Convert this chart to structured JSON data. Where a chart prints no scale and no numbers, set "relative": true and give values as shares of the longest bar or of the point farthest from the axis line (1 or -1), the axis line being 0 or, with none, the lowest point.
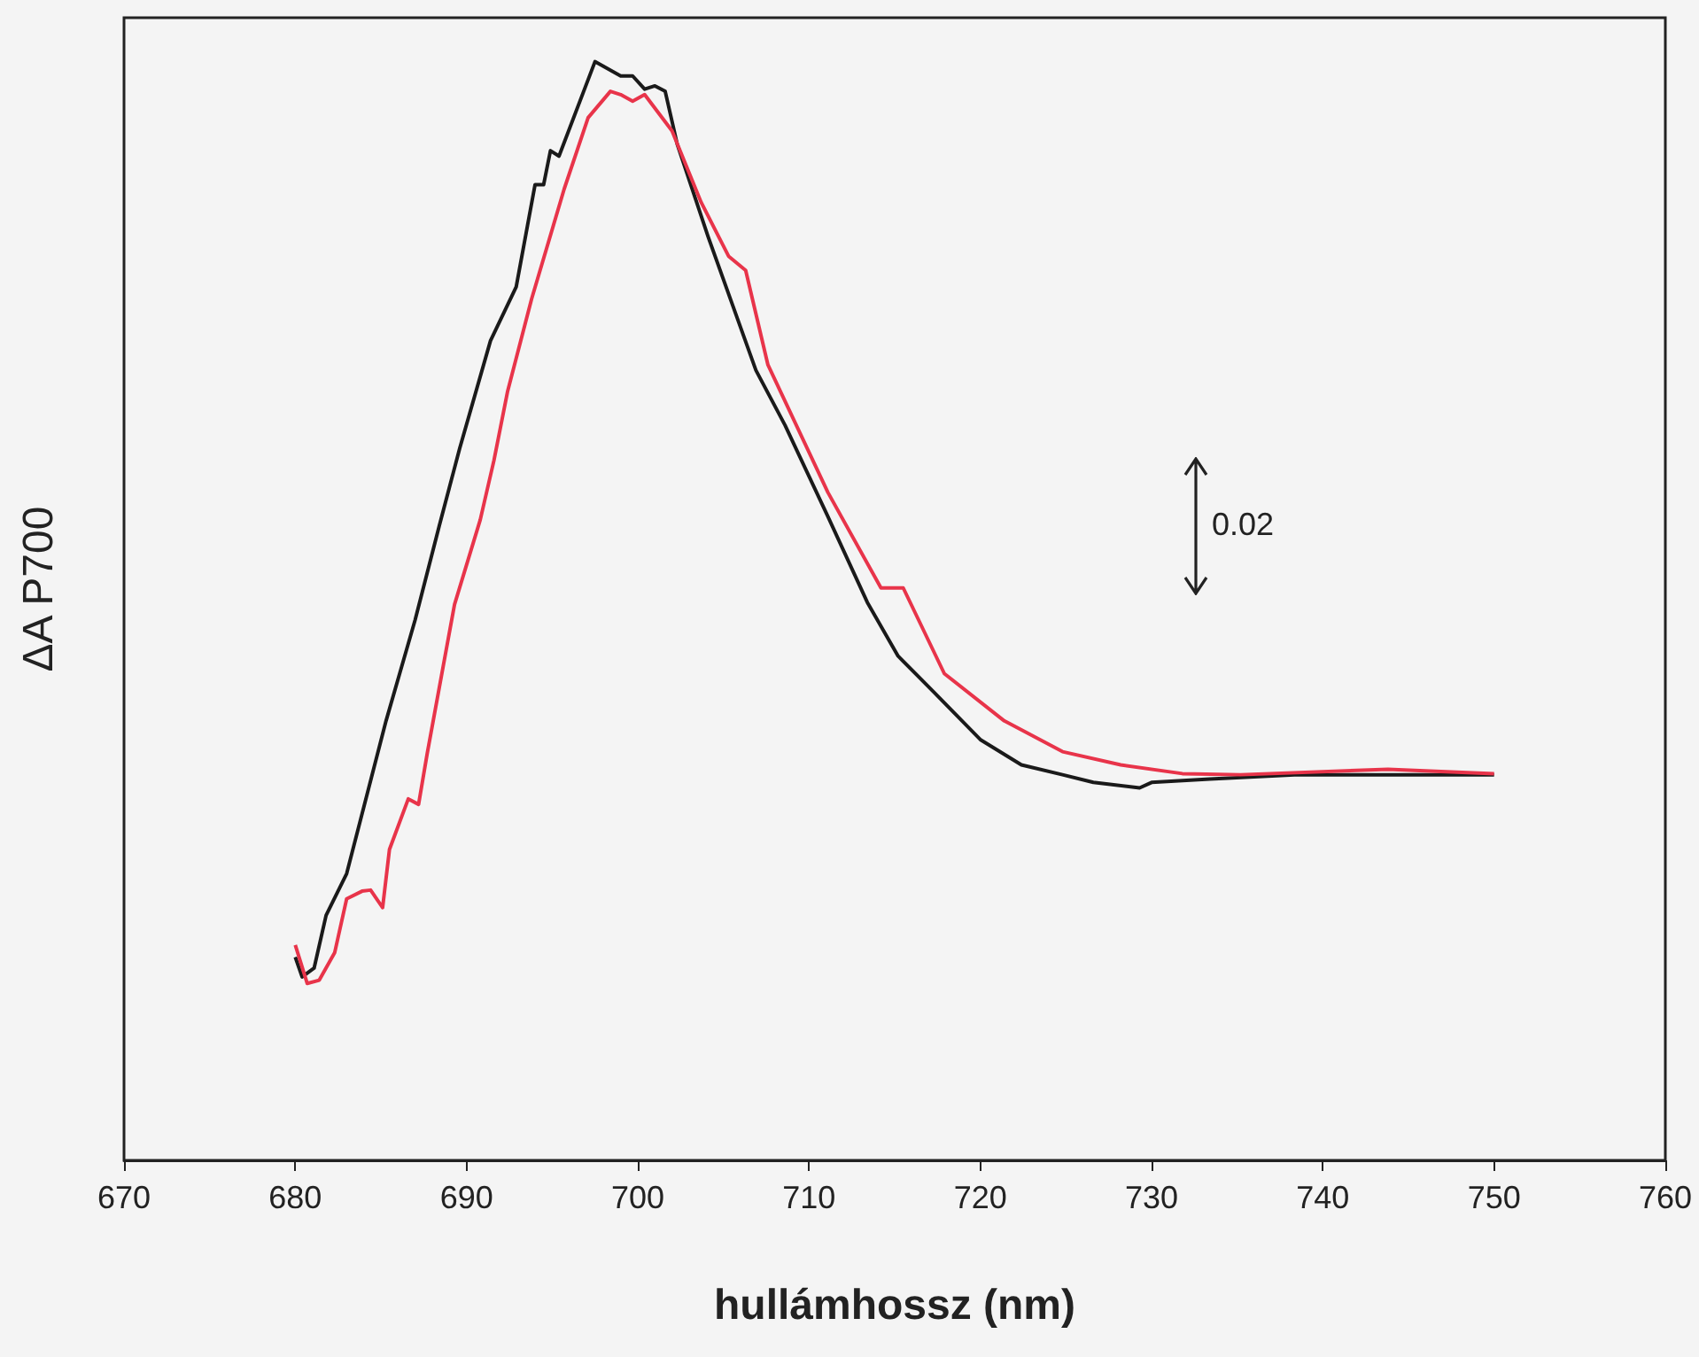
{
  "chart_data": {
    "type": "line",
    "relative": true,
    "xlabel": "hullámhossz (nm)",
    "ylabel": "ΔA P700",
    "xlim": [
      670,
      760
    ],
    "xticks": [
      670,
      680,
      690,
      700,
      710,
      720,
      730,
      740,
      750,
      760
    ],
    "grid": false,
    "marker": "none",
    "line_style": "solid",
    "annotations": [
      "0.02"
    ],
    "series": [
      {
        "color": "#1a1a1a",
        "x": [
          680,
          680.4,
          681.1,
          681.8,
          683,
          685.3,
          687,
          688.4,
          689.6,
          691.4,
          692.9,
          694,
          694.5,
          694.9,
          695.4,
          697.5,
          699,
          699.7,
          700.4,
          701,
          701.6,
          702.3,
          704.1,
          706.9,
          708.6,
          711.1,
          713.4,
          715.2,
          717.3,
          720,
          722.4,
          724.8,
          726.6,
          729.3,
          730,
          733.4,
          738.6,
          743.8,
          750
        ],
        "values": [
          0.185,
          0.167,
          0.175,
          0.223,
          0.261,
          0.4,
          0.492,
          0.577,
          0.648,
          0.746,
          0.795,
          0.888,
          0.888,
          0.919,
          0.914,
          1.0,
          0.987,
          0.987,
          0.975,
          0.978,
          0.973,
          0.925,
          0.841,
          0.719,
          0.669,
          0.586,
          0.508,
          0.459,
          0.426,
          0.383,
          0.36,
          0.351,
          0.344,
          0.339,
          0.344,
          0.347,
          0.351,
          0.351,
          0.351
        ]
      },
      {
        "color": "#e8344a",
        "x": [
          680,
          680.7,
          681.4,
          682.3,
          683,
          683.9,
          684.4,
          685.1,
          685.5,
          686.6,
          687.2,
          687.7,
          689.3,
          690.8,
          691.6,
          692.4,
          693.8,
          695.7,
          697.1,
          698.4,
          699,
          699.7,
          700.4,
          702,
          703.7,
          705.3,
          706.3,
          707.6,
          711.1,
          714.2,
          715.5,
          717.9,
          721.4,
          724.8,
          728.2,
          731.8,
          735.2,
          743.8,
          750
        ],
        "values": [
          0.196,
          0.161,
          0.164,
          0.189,
          0.238,
          0.245,
          0.246,
          0.23,
          0.283,
          0.329,
          0.324,
          0.37,
          0.506,
          0.583,
          0.637,
          0.7,
          0.784,
          0.884,
          0.949,
          0.973,
          0.97,
          0.964,
          0.97,
          0.937,
          0.872,
          0.823,
          0.81,
          0.724,
          0.608,
          0.521,
          0.521,
          0.443,
          0.4,
          0.372,
          0.36,
          0.352,
          0.351,
          0.356,
          0.352
        ]
      }
    ]
  }
}
